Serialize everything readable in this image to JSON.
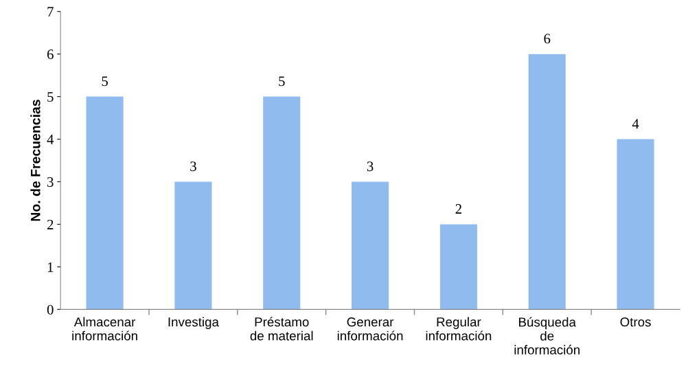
{
  "chart_data": {
    "type": "bar",
    "ylabel": "No. de Frecuencias",
    "categories": [
      "Almacenar\ninformación",
      "Investiga",
      "Préstamo\nde material",
      "Generar\ninformación",
      "Regular\ninformación",
      "Búsqueda\nde\ninformación",
      "Otros"
    ],
    "values": [
      5,
      3,
      5,
      3,
      2,
      6,
      4
    ],
    "color": "#8fbbef",
    "ylim": [
      0,
      7
    ],
    "yticks": [
      0,
      1,
      2,
      3,
      4,
      5,
      6,
      7
    ],
    "grid": false,
    "data_labels": true
  }
}
